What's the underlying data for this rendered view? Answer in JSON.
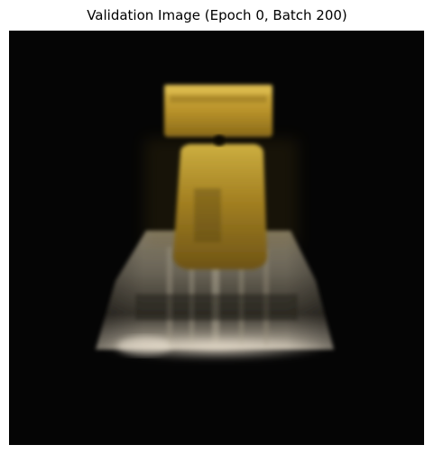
{
  "figure": {
    "title": "Validation Image (Epoch 0, Batch 200)"
  },
  "image": {
    "subject": "generated-object-image",
    "colors": {
      "background": "#050505",
      "gold": "#c9a12a",
      "gold_dark": "#7a5a12",
      "silver": "#b8b0a0",
      "silver_light": "#d8d0c0",
      "shadow": "#2a2620"
    }
  }
}
